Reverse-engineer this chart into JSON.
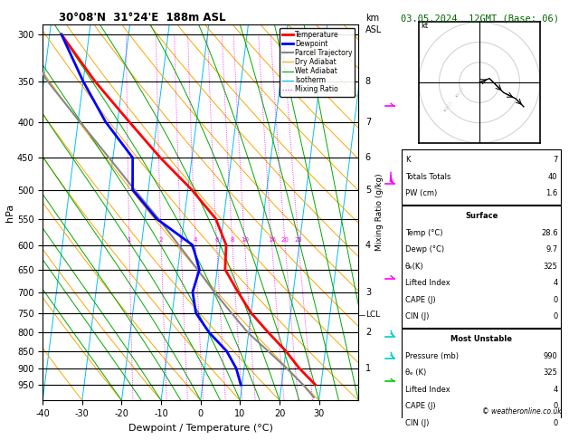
{
  "title_left": "30°08'N  31°24'E  188m ASL",
  "title_right": "03.05.2024  12GMT (Base: 06)",
  "xlabel": "Dewpoint / Temperature (°C)",
  "ylabel_left": "hPa",
  "pressure_levels": [
    300,
    350,
    400,
    450,
    500,
    550,
    600,
    650,
    700,
    750,
    800,
    850,
    900,
    950
  ],
  "temp_ticks": [
    -40,
    -30,
    -20,
    -10,
    0,
    10,
    20,
    30
  ],
  "km_labels": [
    8,
    7,
    6,
    5,
    4,
    3,
    2,
    1
  ],
  "km_pressures": [
    350,
    400,
    450,
    500,
    600,
    700,
    800,
    900
  ],
  "lcl_pressure": 755,
  "mixing_ratio_values": [
    1,
    2,
    3,
    4,
    6,
    8,
    10,
    16,
    20,
    25
  ],
  "isotherm_color": "#00bfff",
  "dry_adiabat_color": "#ffa500",
  "wet_adiabat_color": "#00aa00",
  "mixing_ratio_color": "#ff00ff",
  "temp_color": "#ff0000",
  "dewp_color": "#0000ff",
  "parcel_color": "#888888",
  "legend_entries": [
    "Temperature",
    "Dewpoint",
    "Parcel Trajectory",
    "Dry Adiabat",
    "Wet Adiabat",
    "Isotherm",
    "Mixing Ratio"
  ],
  "sounding_temp": {
    "pressure": [
      950,
      900,
      850,
      800,
      750,
      700,
      650,
      600,
      550,
      500,
      450,
      400,
      350,
      300
    ],
    "temp": [
      28.6,
      24.0,
      20.0,
      15.0,
      10.0,
      6.0,
      2.0,
      1.5,
      -2.0,
      -9.0,
      -18.0,
      -27.0,
      -37.0,
      -47.0
    ]
  },
  "sounding_dewp": {
    "pressure": [
      950,
      900,
      850,
      800,
      750,
      700,
      650,
      600,
      550,
      500,
      450,
      400,
      350,
      300
    ],
    "temp": [
      9.7,
      8.0,
      5.0,
      0.0,
      -4.0,
      -5.5,
      -4.5,
      -7.0,
      -17.0,
      -24.0,
      -25.0,
      -33.0,
      -40.0,
      -47.0
    ]
  },
  "parcel_temp": {
    "pressure": [
      990,
      950,
      900,
      850,
      800,
      755,
      700,
      650,
      600,
      550,
      500,
      450,
      400,
      350,
      300
    ],
    "temp": [
      28.6,
      25.5,
      20.8,
      15.5,
      9.8,
      5.5,
      0.0,
      -5.0,
      -10.5,
      -16.5,
      -23.5,
      -31.0,
      -39.5,
      -49.0,
      -58.0
    ]
  },
  "copyright": "© weatheronline.co.uk",
  "hodo_points": [
    [
      0,
      0
    ],
    [
      5,
      2
    ],
    [
      12,
      -5
    ],
    [
      18,
      -8
    ],
    [
      22,
      -12
    ]
  ],
  "hodo_gray_points": [
    [
      -10,
      -6
    ],
    [
      -16,
      -13
    ]
  ],
  "wind_barbs": [
    {
      "pressure": 380,
      "color": "#ff00ff",
      "flag": 1
    },
    {
      "pressure": 490,
      "color": "#ff00ff",
      "flag": 4
    },
    {
      "pressure": 670,
      "color": "#ff00ff",
      "flag": 1
    },
    {
      "pressure": 810,
      "color": "#00cccc",
      "flag": 2
    },
    {
      "pressure": 870,
      "color": "#00cccc",
      "flag": 2
    },
    {
      "pressure": 940,
      "color": "#00cc00",
      "flag": 1
    }
  ]
}
